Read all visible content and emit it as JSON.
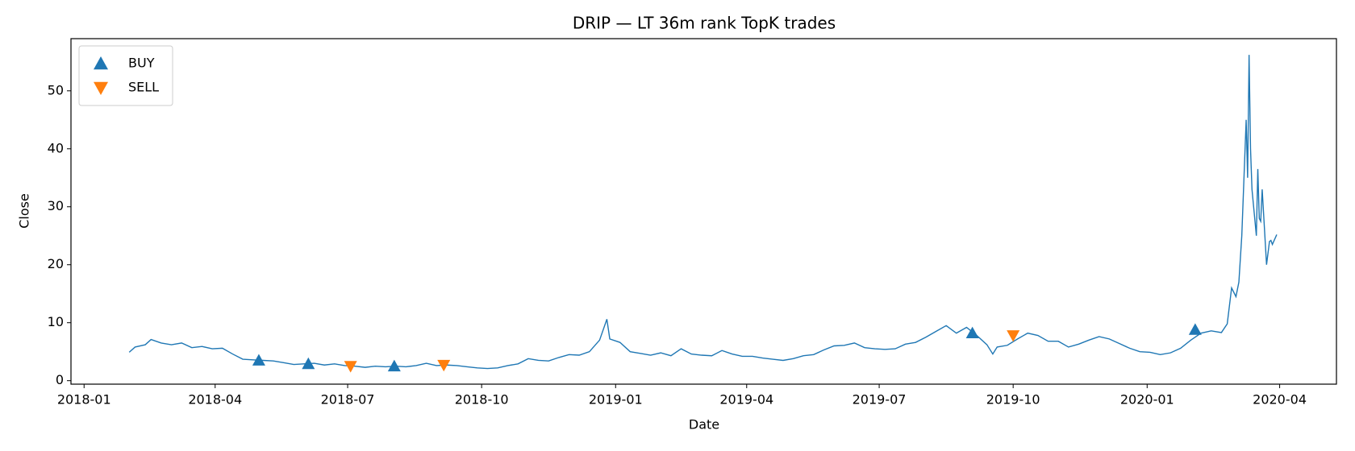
{
  "chart_data": {
    "type": "line",
    "title": "DRIP — LT 36m rank TopK trades",
    "x_label": "Date",
    "y_label": "Close",
    "xlim": [
      "2017-12-23",
      "2020-05-10"
    ],
    "xticks": [
      {
        "value": "2018-01-01",
        "label": "2018-01"
      },
      {
        "value": "2018-04-01",
        "label": "2018-04"
      },
      {
        "value": "2018-07-01",
        "label": "2018-07"
      },
      {
        "value": "2018-10-01",
        "label": "2018-10"
      },
      {
        "value": "2019-01-01",
        "label": "2019-01"
      },
      {
        "value": "2019-04-01",
        "label": "2019-04"
      },
      {
        "value": "2019-07-01",
        "label": "2019-07"
      },
      {
        "value": "2019-10-01",
        "label": "2019-10"
      },
      {
        "value": "2020-01-01",
        "label": "2020-01"
      },
      {
        "value": "2020-04-01",
        "label": "2020-04"
      }
    ],
    "ylim": [
      -0.6,
      59
    ],
    "yticks": [
      0,
      10,
      20,
      30,
      40,
      50
    ],
    "grid": false,
    "legend": "upper left",
    "series": [
      {
        "color": "#1f77b4",
        "x": [
          "2018-02-01",
          "2018-02-05",
          "2018-02-12",
          "2018-02-16",
          "2018-02-23",
          "2018-03-02",
          "2018-03-09",
          "2018-03-16",
          "2018-03-23",
          "2018-03-30",
          "2018-04-06",
          "2018-04-13",
          "2018-04-20",
          "2018-04-27",
          "2018-05-04",
          "2018-05-11",
          "2018-05-18",
          "2018-05-25",
          "2018-06-01",
          "2018-06-08",
          "2018-06-15",
          "2018-06-22",
          "2018-06-29",
          "2018-07-06",
          "2018-07-13",
          "2018-07-20",
          "2018-07-27",
          "2018-08-03",
          "2018-08-10",
          "2018-08-17",
          "2018-08-24",
          "2018-08-31",
          "2018-09-07",
          "2018-09-14",
          "2018-09-21",
          "2018-09-28",
          "2018-10-05",
          "2018-10-12",
          "2018-10-19",
          "2018-10-26",
          "2018-11-02",
          "2018-11-09",
          "2018-11-16",
          "2018-11-23",
          "2018-11-30",
          "2018-12-07",
          "2018-12-14",
          "2018-12-21",
          "2018-12-26",
          "2018-12-28",
          "2019-01-04",
          "2019-01-11",
          "2019-01-18",
          "2019-01-25",
          "2019-02-01",
          "2019-02-08",
          "2019-02-15",
          "2019-02-22",
          "2019-03-01",
          "2019-03-08",
          "2019-03-15",
          "2019-03-22",
          "2019-03-29",
          "2019-04-05",
          "2019-04-12",
          "2019-04-19",
          "2019-04-26",
          "2019-05-03",
          "2019-05-10",
          "2019-05-17",
          "2019-05-24",
          "2019-05-31",
          "2019-06-07",
          "2019-06-14",
          "2019-06-21",
          "2019-06-28",
          "2019-07-05",
          "2019-07-12",
          "2019-07-19",
          "2019-07-26",
          "2019-08-02",
          "2019-08-09",
          "2019-08-16",
          "2019-08-23",
          "2019-08-30",
          "2019-09-06",
          "2019-09-13",
          "2019-09-17",
          "2019-09-20",
          "2019-09-27",
          "2019-10-04",
          "2019-10-11",
          "2019-10-18",
          "2019-10-25",
          "2019-11-01",
          "2019-11-08",
          "2019-11-15",
          "2019-11-22",
          "2019-11-29",
          "2019-12-06",
          "2019-12-13",
          "2019-12-20",
          "2019-12-27",
          "2020-01-03",
          "2020-01-10",
          "2020-01-17",
          "2020-01-24",
          "2020-01-31",
          "2020-02-07",
          "2020-02-14",
          "2020-02-21",
          "2020-02-25",
          "2020-02-28",
          "2020-03-02",
          "2020-03-04",
          "2020-03-06",
          "2020-03-09",
          "2020-03-10",
          "2020-03-11",
          "2020-03-12",
          "2020-03-13",
          "2020-03-16",
          "2020-03-17",
          "2020-03-18",
          "2020-03-19",
          "2020-03-20",
          "2020-03-23",
          "2020-03-24",
          "2020-03-25",
          "2020-03-26",
          "2020-03-27",
          "2020-03-30"
        ],
        "values": [
          4.9,
          5.8,
          6.2,
          7.1,
          6.5,
          6.2,
          6.5,
          5.7,
          5.9,
          5.5,
          5.6,
          4.6,
          3.7,
          3.6,
          3.5,
          3.4,
          3.1,
          2.8,
          2.9,
          3.0,
          2.7,
          2.9,
          2.6,
          2.5,
          2.3,
          2.5,
          2.4,
          2.5,
          2.4,
          2.6,
          3.0,
          2.6,
          2.7,
          2.6,
          2.4,
          2.2,
          2.1,
          2.2,
          2.6,
          2.9,
          3.8,
          3.5,
          3.4,
          4.0,
          4.5,
          4.4,
          5.0,
          7.0,
          10.6,
          7.2,
          6.6,
          5.0,
          4.7,
          4.4,
          4.8,
          4.3,
          5.5,
          4.6,
          4.4,
          4.3,
          5.2,
          4.6,
          4.2,
          4.2,
          3.9,
          3.7,
          3.5,
          3.8,
          4.3,
          4.5,
          5.3,
          6.0,
          6.1,
          6.5,
          5.7,
          5.5,
          5.4,
          5.5,
          6.3,
          6.6,
          7.5,
          8.5,
          9.5,
          8.2,
          9.2,
          7.8,
          6.2,
          4.6,
          5.8,
          6.1,
          7.2,
          8.2,
          7.8,
          6.8,
          6.8,
          5.8,
          6.3,
          7.0,
          7.6,
          7.2,
          6.4,
          5.6,
          5.0,
          4.9,
          4.5,
          4.8,
          5.6,
          7.0,
          8.2,
          8.6,
          8.3,
          9.8,
          16.0,
          14.5,
          17.0,
          25.0,
          45.0,
          35.0,
          56.2,
          40.0,
          33.0,
          25.0,
          36.5,
          28.0,
          27.5,
          33.0,
          20.0,
          22.0,
          24.0,
          24.2,
          23.5,
          25.2
        ]
      },
      {
        "name": "BUY",
        "marker": "triangle-up",
        "color": "#1f77b4",
        "x": [
          "2018-05-01",
          "2018-06-04",
          "2018-08-02",
          "2019-09-03",
          "2020-02-03"
        ],
        "values": [
          3.5,
          2.9,
          2.5,
          8.2,
          8.8
        ]
      },
      {
        "name": "SELL",
        "marker": "triangle-down",
        "color": "#ff7f0e",
        "x": [
          "2018-07-03",
          "2018-09-05",
          "2019-10-01"
        ],
        "values": [
          2.5,
          2.7,
          7.8
        ]
      }
    ]
  }
}
